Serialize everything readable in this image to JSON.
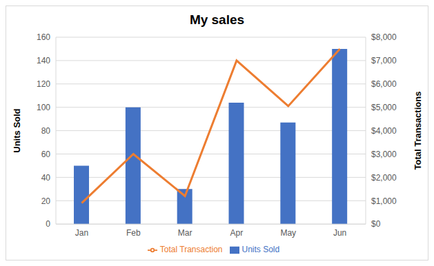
{
  "chart_data": {
    "type": "bar",
    "title": "My sales",
    "categories": [
      "Jan",
      "Feb",
      "Mar",
      "Apr",
      "May",
      "Jun"
    ],
    "series": [
      {
        "name": "Units Sold",
        "type": "bar",
        "color": "#4472c4",
        "values": [
          50,
          100,
          30,
          104,
          87,
          150
        ]
      },
      {
        "name": "Total Transaction",
        "type": "line",
        "color": "#ed7d31",
        "marker": "none",
        "axis": "y2",
        "values": [
          900,
          3000,
          1200,
          7000,
          5050,
          7500
        ]
      }
    ],
    "y_label": "Units Sold",
    "y2_label": "Total Transactions",
    "ylim": [
      0,
      160
    ],
    "yticks": [
      0,
      20,
      40,
      60,
      80,
      100,
      120,
      140,
      160
    ],
    "y2lim": [
      0,
      8000
    ],
    "y2ticks": [
      {
        "value": 0,
        "label": "$0"
      },
      {
        "value": 1000,
        "label": "$1,000"
      },
      {
        "value": 2000,
        "label": "$2,000"
      },
      {
        "value": 3000,
        "label": "$3,000"
      },
      {
        "value": 4000,
        "label": "$4,000"
      },
      {
        "value": 5000,
        "label": "$5,000"
      },
      {
        "value": 6000,
        "label": "$6,000"
      },
      {
        "value": 7000,
        "label": "$7,000"
      },
      {
        "value": 8000,
        "label": "$8,000"
      }
    ],
    "grid": true,
    "legend": "bottom"
  }
}
